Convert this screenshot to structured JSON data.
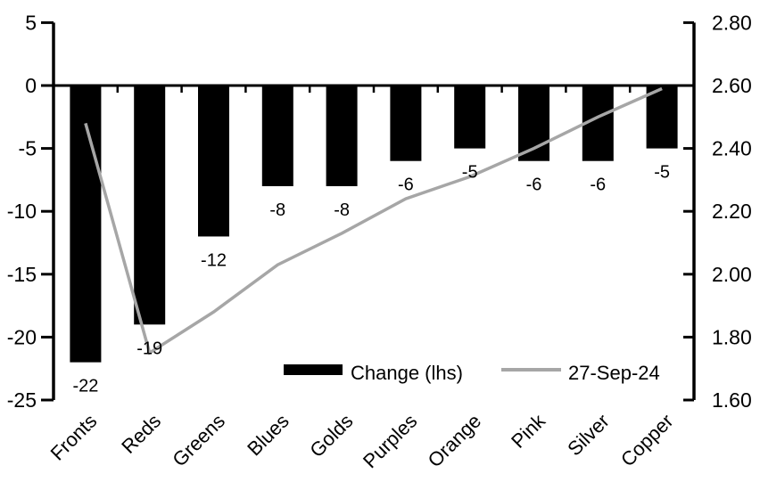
{
  "chart_data": {
    "type": "bar",
    "subtype": "bar-line-combo",
    "title": "",
    "categories": [
      "Fronts",
      "Reds",
      "Greens",
      "Blues",
      "Golds",
      "Purples",
      "Orange",
      "Pink",
      "Silver",
      "Copper"
    ],
    "series": [
      {
        "name": "Change (lhs)",
        "type": "bar",
        "axis": "left",
        "color": "#000000",
        "values": [
          -22,
          -19,
          -12,
          -8,
          -8,
          -6,
          -5,
          -6,
          -6,
          -5
        ],
        "data_labels": [
          "-22",
          "-19",
          "-12",
          "-8",
          "-8",
          "-6",
          "-5",
          "-6",
          "-6",
          "-5"
        ]
      },
      {
        "name": "27-Sep-24",
        "type": "line",
        "axis": "right",
        "color": "#a6a6a6",
        "values": [
          2.48,
          1.75,
          1.88,
          2.03,
          2.13,
          2.24,
          2.31,
          2.4,
          2.5,
          2.59
        ]
      }
    ],
    "left_axis": {
      "tick_labels": [
        "5",
        "0",
        "-5",
        "-10",
        "-15",
        "-20",
        "-25"
      ],
      "tick_values": [
        5,
        0,
        -5,
        -10,
        -15,
        -20,
        -25
      ],
      "min": -25,
      "max": 5
    },
    "right_axis": {
      "tick_labels": [
        "2.80",
        "2.60",
        "2.40",
        "2.20",
        "2.00",
        "1.80",
        "1.60"
      ],
      "tick_values": [
        2.8,
        2.6,
        2.4,
        2.2,
        2.0,
        1.8,
        1.6
      ],
      "min": 1.6,
      "max": 2.8
    },
    "legend": {
      "position": "bottom-inside",
      "entries": [
        "Change (lhs)",
        "27-Sep-24"
      ]
    },
    "grid": false
  },
  "colors": {
    "bar": "#000000",
    "line": "#a6a6a6",
    "axis": "#000000",
    "background": "#ffffff"
  }
}
